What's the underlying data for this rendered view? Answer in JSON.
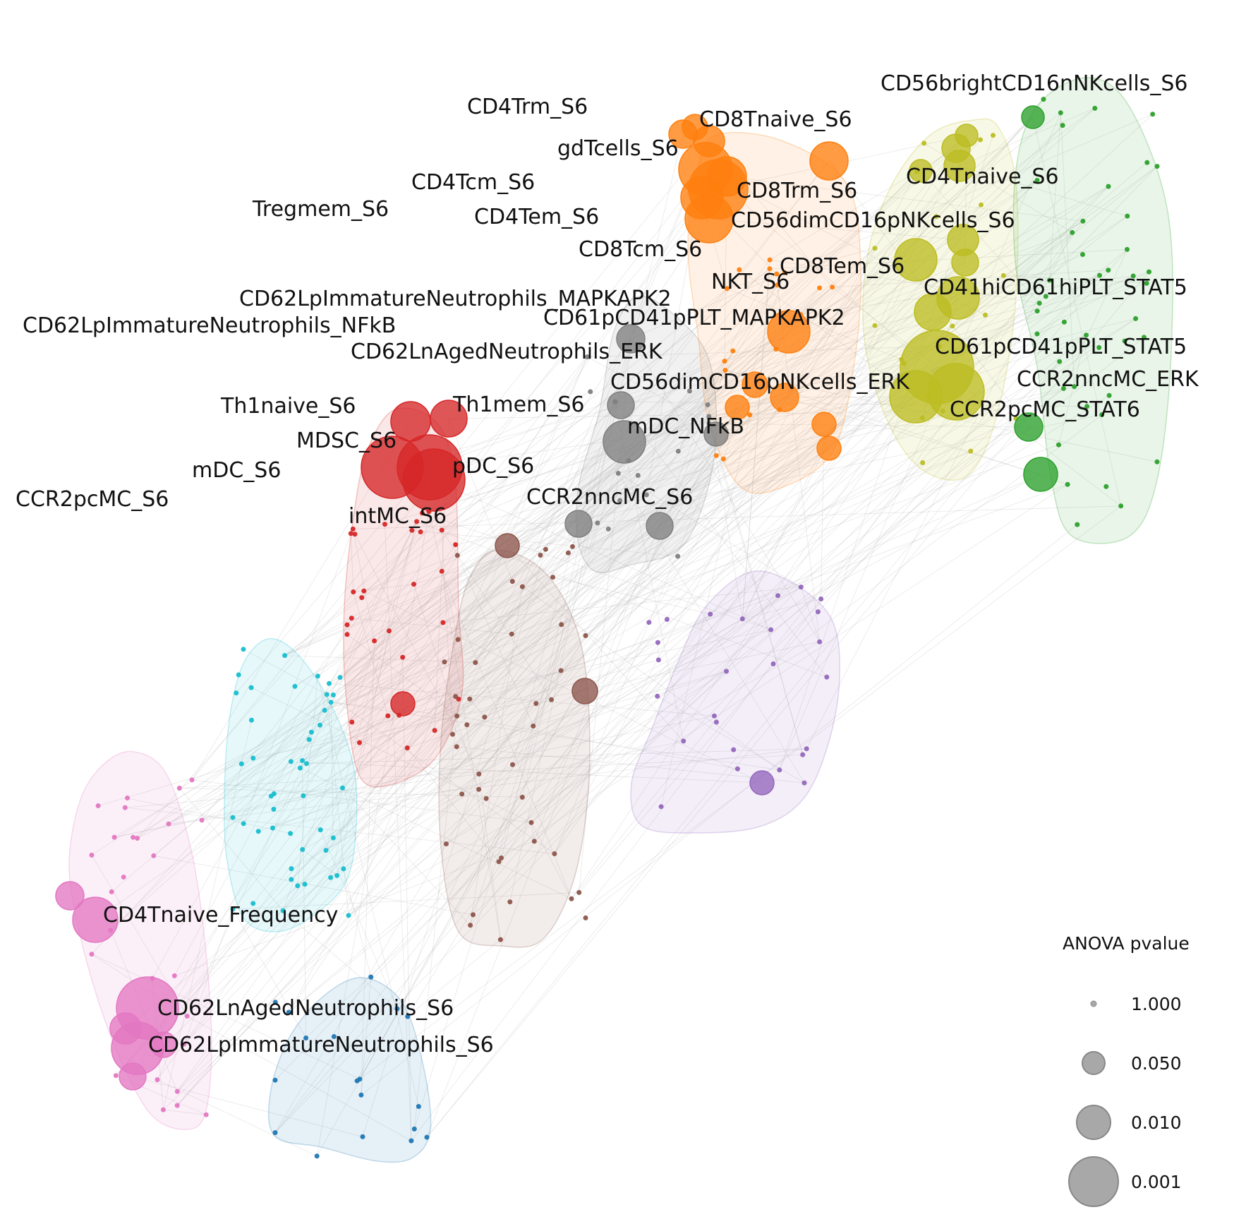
{
  "chart_data": {
    "type": "scatter",
    "legend": {
      "title": "ANOVA pvalue",
      "placement": "bottom-right",
      "entries": [
        "1.000",
        "0.050",
        "0.010",
        "0.001"
      ],
      "pvalues": [
        1.0,
        0.05,
        0.01,
        0.001
      ]
    },
    "clusters": [
      {
        "id": "orange",
        "color": "#ff7f0e"
      },
      {
        "id": "olive",
        "color": "#bcbd22"
      },
      {
        "id": "green",
        "color": "#2ca02c"
      },
      {
        "id": "gray",
        "color": "#7f7f7f"
      },
      {
        "id": "red",
        "color": "#d62728"
      },
      {
        "id": "brown",
        "color": "#8c564b"
      },
      {
        "id": "purple",
        "color": "#9467bd"
      },
      {
        "id": "cyan",
        "color": "#17becf"
      },
      {
        "id": "pink",
        "color": "#e377c2"
      },
      {
        "id": "blue",
        "color": "#1f77b4"
      }
    ],
    "labels": [
      "CD56brightCD16nNKcells_S6",
      "CD4Trm_S6",
      "CD8Tnaive_S6",
      "gdTcells_S6",
      "CD4Tcm_S6",
      "CD4Tnaive_S6",
      "CD8Trm_S6",
      "Tregmem_S6",
      "CD4Tem_S6",
      "CD56dimCD16pNKcells_S6",
      "CD8Tcm_S6",
      "CD8Tem_S6",
      "NKT_S6",
      "CD41hiCD61hiPLT_STAT5",
      "CD62LpImmatureNeutrophils_MAPKAPK2",
      "CD61pCD41pPLT_MAPKAPK2",
      "CD62LpImmatureNeutrophils_NFkB",
      "CD62LnAgedNeutrophils_ERK",
      "CD61pCD41pPLT_STAT5",
      "CCR2nncMC_ERK",
      "CD56dimCD16pNKcells_ERK",
      "Th1naive_S6",
      "Th1mem_S6",
      "CCR2pcMC_STAT6",
      "mDC_NFkB",
      "MDSC_S6",
      "pDC_S6",
      "mDC_S6",
      "CCR2pcMC_S6",
      "CCR2nncMC_S6",
      "intMC_S6",
      "CD4Tnaive_Frequency",
      "CD62LnAgedNeutrophils_S6",
      "CD62LpImmatureNeutrophils_S6"
    ]
  }
}
